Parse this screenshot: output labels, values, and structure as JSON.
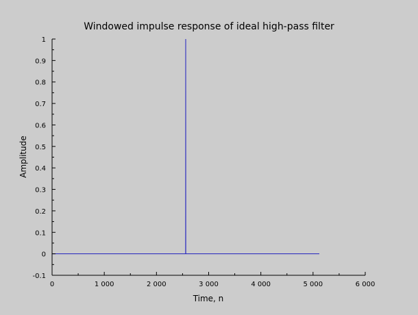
{
  "chart_data": {
    "type": "line",
    "title": "Windowed impulse response of ideal high-pass filter",
    "xlabel": "Time, n",
    "ylabel": "Amplitude",
    "xlim": [
      0,
      6000
    ],
    "ylim": [
      -0.1,
      1
    ],
    "x_ticks": [
      0,
      1000,
      2000,
      3000,
      4000,
      5000,
      6000
    ],
    "x_tick_labels": [
      "0",
      "1 000",
      "2 000",
      "3 000",
      "4 000",
      "5 000",
      "6 000"
    ],
    "y_ticks": [
      -0.1,
      0,
      0.1,
      0.2,
      0.3,
      0.4,
      0.5,
      0.6,
      0.7,
      0.8,
      0.9,
      1
    ],
    "y_tick_labels": [
      "-0.1",
      "0",
      "0.1",
      "0.2",
      "0.3",
      "0.4",
      "0.5",
      "0.6",
      "0.7",
      "0.8",
      "0.9",
      "1"
    ],
    "grid": false,
    "series": [
      {
        "color": "#1f1fbf",
        "x": [
          0,
          2559,
          2560,
          2561,
          5120
        ],
        "y": [
          0,
          0,
          1,
          0,
          0
        ]
      }
    ]
  }
}
